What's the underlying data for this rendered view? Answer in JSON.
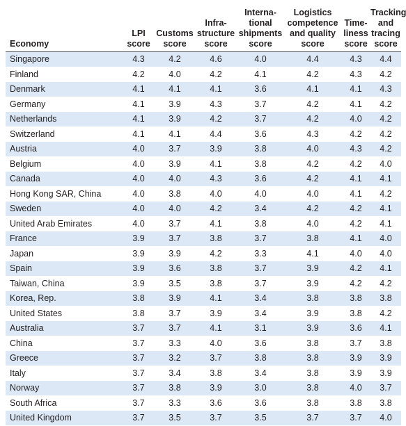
{
  "table": {
    "headers": [
      "Economy",
      "LPI\nscore",
      "Customs\nscore",
      "Infra-\nstructure\nscore",
      "Interna-\ntional\nshipments\nscore",
      "Logistics\ncompetence\nand quality\nscore",
      "Time-\nliness\nscore",
      "Tracking\nand\ntracing\nscore"
    ],
    "rows": [
      [
        "Singapore",
        "4.3",
        "4.2",
        "4.6",
        "4.0",
        "4.4",
        "4.3",
        "4.4"
      ],
      [
        "Finland",
        "4.2",
        "4.0",
        "4.2",
        "4.1",
        "4.2",
        "4.3",
        "4.2"
      ],
      [
        "Denmark",
        "4.1",
        "4.1",
        "4.1",
        "3.6",
        "4.1",
        "4.1",
        "4.3"
      ],
      [
        "Germany",
        "4.1",
        "3.9",
        "4.3",
        "3.7",
        "4.2",
        "4.1",
        "4.2"
      ],
      [
        "Netherlands",
        "4.1",
        "3.9",
        "4.2",
        "3.7",
        "4.2",
        "4.0",
        "4.2"
      ],
      [
        "Switzerland",
        "4.1",
        "4.1",
        "4.4",
        "3.6",
        "4.3",
        "4.2",
        "4.2"
      ],
      [
        "Austria",
        "4.0",
        "3.7",
        "3.9",
        "3.8",
        "4.0",
        "4.3",
        "4.2"
      ],
      [
        "Belgium",
        "4.0",
        "3.9",
        "4.1",
        "3.8",
        "4.2",
        "4.2",
        "4.0"
      ],
      [
        "Canada",
        "4.0",
        "4.0",
        "4.3",
        "3.6",
        "4.2",
        "4.1",
        "4.1"
      ],
      [
        "Hong Kong SAR, China",
        "4.0",
        "3.8",
        "4.0",
        "4.0",
        "4.0",
        "4.1",
        "4.2"
      ],
      [
        "Sweden",
        "4.0",
        "4.0",
        "4.2",
        "3.4",
        "4.2",
        "4.2",
        "4.1"
      ],
      [
        "United Arab Emirates",
        "4.0",
        "3.7",
        "4.1",
        "3.8",
        "4.0",
        "4.2",
        "4.1"
      ],
      [
        "France",
        "3.9",
        "3.7",
        "3.8",
        "3.7",
        "3.8",
        "4.1",
        "4.0"
      ],
      [
        "Japan",
        "3.9",
        "3.9",
        "4.2",
        "3.3",
        "4.1",
        "4.0",
        "4.0"
      ],
      [
        "Spain",
        "3.9",
        "3.6",
        "3.8",
        "3.7",
        "3.9",
        "4.2",
        "4.1"
      ],
      [
        "Taiwan, China",
        "3.9",
        "3.5",
        "3.8",
        "3.7",
        "3.9",
        "4.2",
        "4.2"
      ],
      [
        "Korea, Rep.",
        "3.8",
        "3.9",
        "4.1",
        "3.4",
        "3.8",
        "3.8",
        "3.8"
      ],
      [
        "United States",
        "3.8",
        "3.7",
        "3.9",
        "3.4",
        "3.9",
        "3.8",
        "4.2"
      ],
      [
        "Australia",
        "3.7",
        "3.7",
        "4.1",
        "3.1",
        "3.9",
        "3.6",
        "4.1"
      ],
      [
        "China",
        "3.7",
        "3.3",
        "4.0",
        "3.6",
        "3.8",
        "3.7",
        "3.8"
      ],
      [
        "Greece",
        "3.7",
        "3.2",
        "3.7",
        "3.8",
        "3.8",
        "3.9",
        "3.9"
      ],
      [
        "Italy",
        "3.7",
        "3.4",
        "3.8",
        "3.4",
        "3.8",
        "3.9",
        "3.9"
      ],
      [
        "Norway",
        "3.7",
        "3.8",
        "3.9",
        "3.0",
        "3.8",
        "4.0",
        "3.7"
      ],
      [
        "South Africa",
        "3.7",
        "3.3",
        "3.6",
        "3.6",
        "3.8",
        "3.8",
        "3.8"
      ],
      [
        "United Kingdom",
        "3.7",
        "3.5",
        "3.7",
        "3.5",
        "3.7",
        "3.7",
        "4.0"
      ]
    ]
  },
  "colors": {
    "row_stripe": "#dce8f5",
    "text": "#231f20",
    "header_rule": "#58595b"
  }
}
